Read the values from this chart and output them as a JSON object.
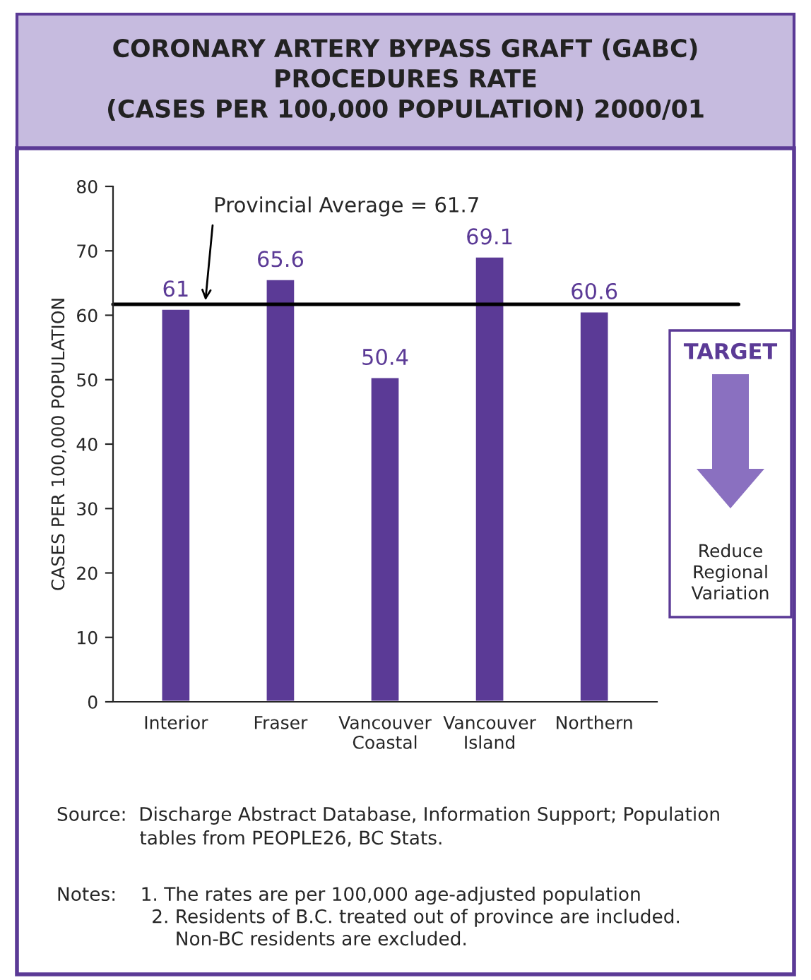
{
  "chart_data": {
    "type": "bar",
    "title": "CORONARY ARTERY BYPASS GRAFT (GABC)\nPROCEDURES RATE\n(CASES PER 100,000 POPULATION) 2000/01",
    "ylabel": "CASES PER 100,000 POPULATION",
    "categories": [
      "Interior",
      "Fraser",
      "Vancouver\nCoastal",
      "Vancouver\nIsland",
      "Northern"
    ],
    "values": [
      61,
      65.6,
      50.4,
      69.1,
      60.6
    ],
    "color": "#5b3a96",
    "data_labels": true,
    "ylim": [
      0,
      80
    ],
    "yticks": [
      0,
      10,
      20,
      30,
      40,
      50,
      60,
      70,
      80
    ],
    "grid": false,
    "ref_lines": [
      {
        "axis": "y",
        "value": 61.7,
        "label": "Provincial Average = 61.7",
        "color": "#000000"
      }
    ],
    "annotations": [
      "TARGET",
      "Reduce\nRegional\nVariation",
      "Source:  Discharge Abstract Database, Information Support; Population\n              tables from PEOPLE26, BC Stats.",
      "Notes:    1. The rates are per 100,000 age-adjusted population\n                2. Residents of B.C. treated out of province are included.\n                    Non-BC residents are excluded."
    ]
  }
}
